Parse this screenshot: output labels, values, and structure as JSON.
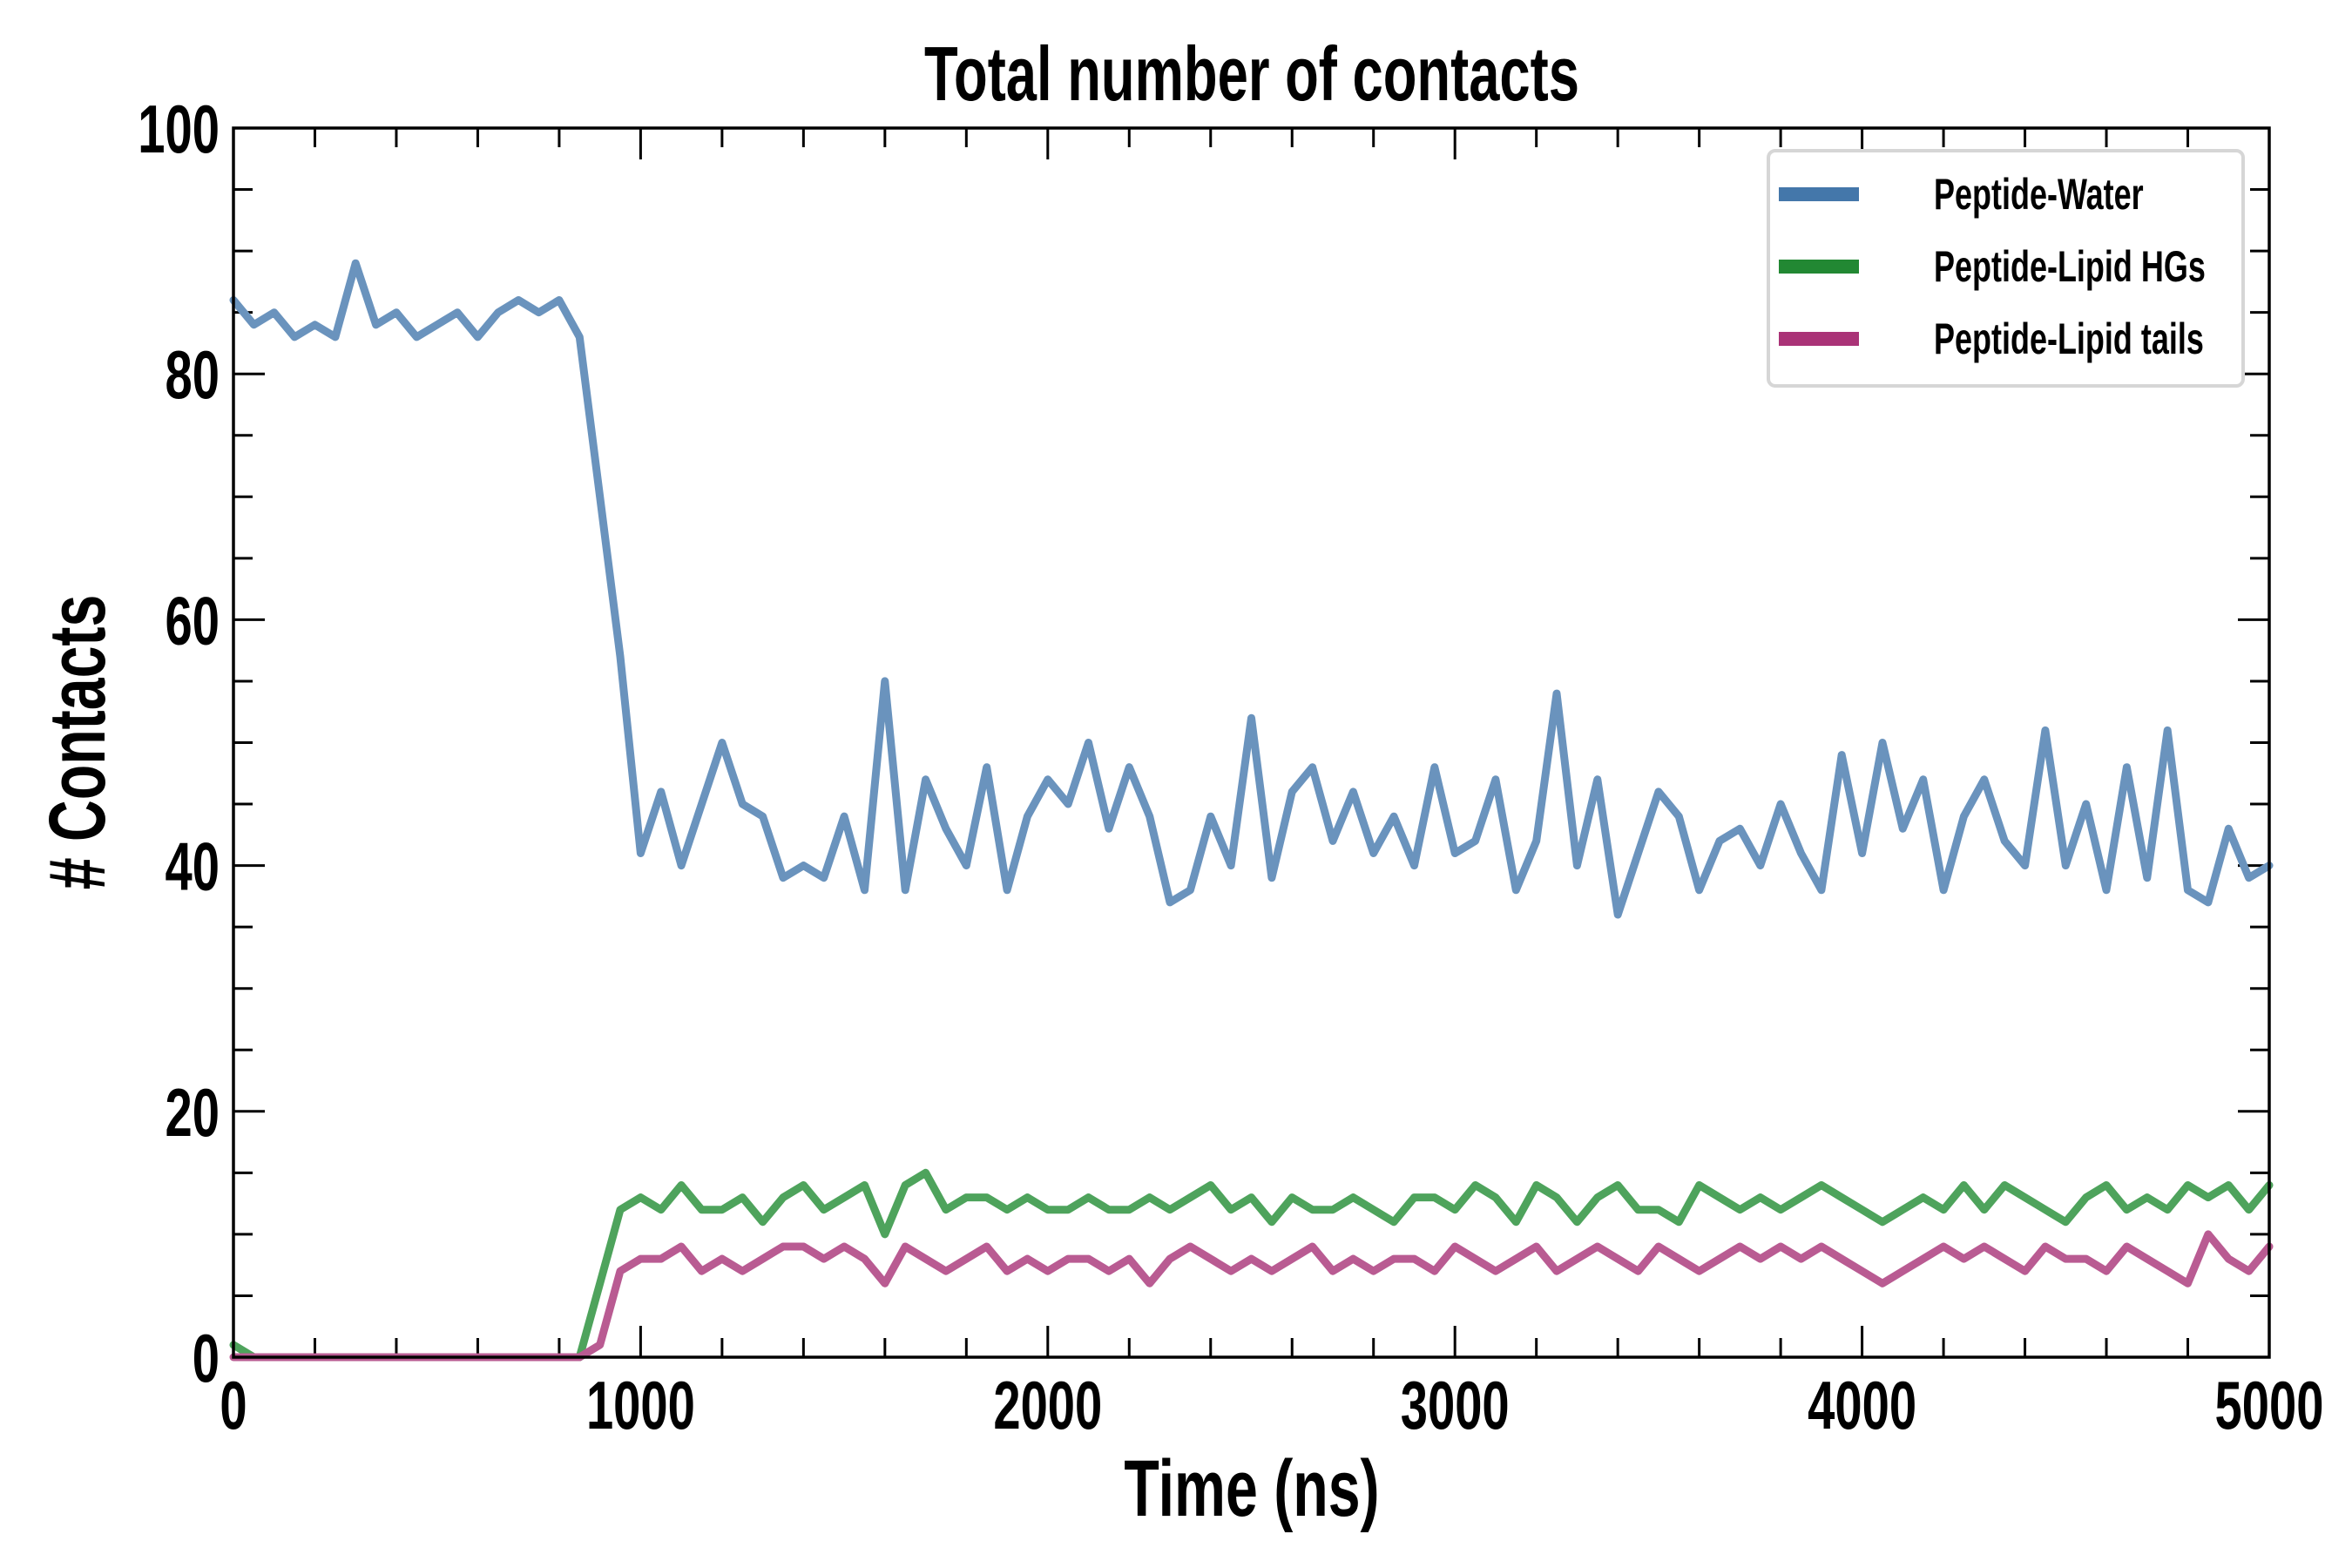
{
  "chart_data": {
    "type": "line",
    "title": "Total number of contacts",
    "xlabel": "Time (ns)",
    "ylabel": "# Contacts",
    "xlim": [
      0,
      5000
    ],
    "ylim": [
      0,
      100
    ],
    "xticks": [
      "0",
      "1000",
      "2000",
      "3000",
      "4000",
      "5000"
    ],
    "yticks": [
      "0",
      "20",
      "40",
      "60",
      "80",
      "100"
    ],
    "grid": false,
    "legend_position": "top-right",
    "x_step": 50,
    "series": [
      {
        "name": "Peptide-Water",
        "color": "#6a93bd",
        "legend_color": "#4477aa",
        "values": [
          86,
          84,
          85,
          83,
          84,
          83,
          89,
          84,
          85,
          83,
          84,
          85,
          83,
          85,
          86,
          85,
          86,
          83,
          70,
          57,
          41,
          46,
          40,
          45,
          50,
          45,
          44,
          39,
          40,
          39,
          44,
          38,
          55,
          38,
          47,
          43,
          40,
          48,
          38,
          44,
          47,
          45,
          50,
          43,
          48,
          44,
          37,
          38,
          44,
          40,
          52,
          39,
          46,
          48,
          42,
          46,
          41,
          44,
          40,
          48,
          41,
          42,
          47,
          38,
          42,
          54,
          40,
          47,
          36,
          41,
          46,
          44,
          38,
          42,
          43,
          40,
          45,
          41,
          38,
          49,
          41,
          50,
          43,
          47,
          38,
          44,
          47,
          42,
          40,
          51,
          40,
          45,
          38,
          48,
          39,
          51,
          38,
          37,
          43,
          39,
          40
        ]
      },
      {
        "name": "Peptide-Lipid HGs",
        "color": "#4ea35c",
        "legend_color": "#228833",
        "values": [
          1,
          0,
          0,
          0,
          0,
          0,
          0,
          0,
          0,
          0,
          0,
          0,
          0,
          0,
          0,
          0,
          0,
          0,
          6,
          12,
          13,
          12,
          14,
          12,
          12,
          13,
          11,
          13,
          14,
          12,
          13,
          14,
          10,
          14,
          15,
          12,
          13,
          13,
          12,
          13,
          12,
          12,
          13,
          12,
          12,
          13,
          12,
          13,
          14,
          12,
          13,
          11,
          13,
          12,
          12,
          13,
          12,
          11,
          13,
          13,
          12,
          14,
          13,
          11,
          14,
          13,
          11,
          13,
          14,
          12,
          12,
          11,
          14,
          13,
          12,
          13,
          12,
          13,
          14,
          13,
          12,
          11,
          12,
          13,
          12,
          14,
          12,
          14,
          13,
          12,
          11,
          13,
          14,
          12,
          13,
          12,
          14,
          13,
          14,
          12,
          14
        ]
      },
      {
        "name": "Peptide-Lipid tails",
        "color": "#b95b92",
        "legend_color": "#aa3377",
        "values": [
          0,
          0,
          0,
          0,
          0,
          0,
          0,
          0,
          0,
          0,
          0,
          0,
          0,
          0,
          0,
          0,
          0,
          0,
          1,
          7,
          8,
          8,
          9,
          7,
          8,
          7,
          8,
          9,
          9,
          8,
          9,
          8,
          6,
          9,
          8,
          7,
          8,
          9,
          7,
          8,
          7,
          8,
          8,
          7,
          8,
          6,
          8,
          9,
          8,
          7,
          8,
          7,
          8,
          9,
          7,
          8,
          7,
          8,
          8,
          7,
          9,
          8,
          7,
          8,
          9,
          7,
          8,
          9,
          8,
          7,
          9,
          8,
          7,
          8,
          9,
          8,
          9,
          8,
          9,
          8,
          7,
          6,
          7,
          8,
          9,
          8,
          9,
          8,
          7,
          9,
          8,
          8,
          7,
          9,
          8,
          7,
          6,
          10,
          8,
          7,
          9
        ]
      }
    ]
  }
}
